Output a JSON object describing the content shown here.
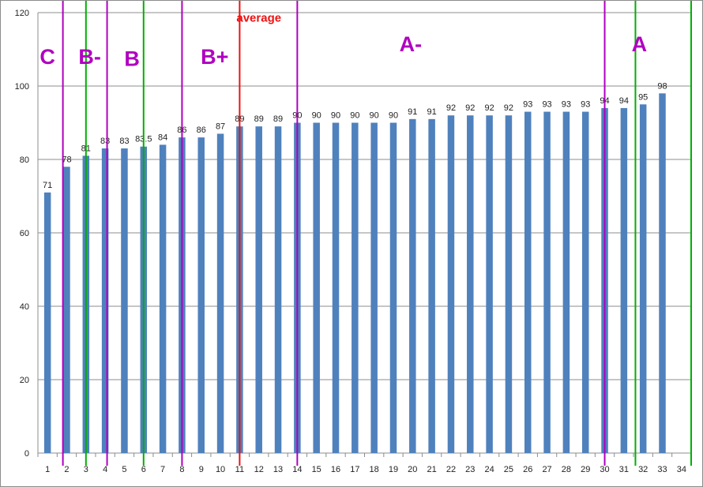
{
  "chart_data": {
    "type": "bar",
    "categories": [
      "1",
      "2",
      "3",
      "4",
      "5",
      "6",
      "7",
      "8",
      "9",
      "10",
      "11",
      "12",
      "13",
      "14",
      "15",
      "16",
      "17",
      "18",
      "19",
      "20",
      "21",
      "22",
      "23",
      "24",
      "25",
      "26",
      "27",
      "28",
      "29",
      "30",
      "31",
      "32",
      "33",
      "34"
    ],
    "values": [
      71,
      78,
      81,
      83,
      83,
      83.5,
      84,
      86,
      86,
      87,
      89,
      89,
      89,
      90,
      90,
      90,
      90,
      90,
      90,
      91,
      91,
      92,
      92,
      92,
      92,
      93,
      93,
      93,
      93,
      94,
      94,
      95,
      98,
      null
    ],
    "data_labels": [
      "71",
      "78",
      "81",
      "83",
      "83",
      "83.5",
      "84",
      "86",
      "86",
      "87",
      "89",
      "89",
      "89",
      "90",
      "90",
      "90",
      "90",
      "90",
      "90",
      "91",
      "91",
      "92",
      "92",
      "92",
      "92",
      "93",
      "93",
      "93",
      "93",
      "94",
      "94",
      "95",
      "98",
      ""
    ],
    "y_ticks": [
      "0",
      "20",
      "40",
      "60",
      "80",
      "100",
      "120"
    ],
    "ylim": [
      0,
      120
    ],
    "grid": true,
    "title": "",
    "xlabel": "",
    "ylabel": "",
    "colors": {
      "bar": "#4f81bd",
      "grid": "#8c8c8c",
      "purple": "#b000c0",
      "green": "#00b000",
      "red": "#ee1111"
    },
    "boundaries": [
      {
        "after_index": 1.3,
        "color": "purple",
        "kind": "boundary-purple"
      },
      {
        "after_index": 2.5,
        "color": "green",
        "kind": "boundary-green"
      },
      {
        "after_index": 3.6,
        "color": "purple",
        "kind": "boundary-purple"
      },
      {
        "after_index": 5.5,
        "color": "green",
        "kind": "boundary-green"
      },
      {
        "after_index": 7.5,
        "color": "purple",
        "kind": "boundary-purple"
      },
      {
        "after_index": 10.5,
        "color": "red",
        "kind": "average-line"
      },
      {
        "after_index": 13.5,
        "color": "purple",
        "kind": "boundary-purple"
      },
      {
        "after_index": 29.5,
        "color": "purple",
        "kind": "boundary-purple"
      },
      {
        "after_index": 31.1,
        "color": "green",
        "kind": "boundary-green"
      },
      {
        "after_index": 34.0,
        "color": "green",
        "kind": "boundary-green"
      }
    ],
    "annotations": [
      {
        "text": "C",
        "at_index": 1.0,
        "y_value": 106,
        "color": "purple",
        "kind": "grade-c"
      },
      {
        "text": "B-",
        "at_index": 3.2,
        "y_value": 106,
        "color": "purple",
        "kind": "grade-b-minus"
      },
      {
        "text": "B",
        "at_index": 5.4,
        "y_value": 105.5,
        "color": "purple",
        "kind": "grade-b"
      },
      {
        "text": "B+",
        "at_index": 9.7,
        "y_value": 106,
        "color": "purple",
        "kind": "grade-b-plus"
      },
      {
        "text": "average",
        "at_index": 12.0,
        "y_value": 117.5,
        "color": "red",
        "kind": "average-label"
      },
      {
        "text": "A-",
        "at_index": 19.9,
        "y_value": 109.5,
        "color": "purple",
        "kind": "grade-a-minus"
      },
      {
        "text": "A",
        "at_index": 31.8,
        "y_value": 109.5,
        "color": "purple",
        "kind": "grade-a"
      }
    ]
  }
}
